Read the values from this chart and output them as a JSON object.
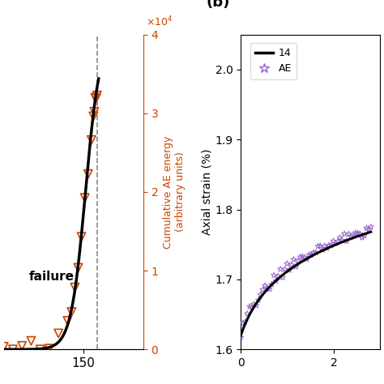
{
  "panel_a": {
    "ylabel_right": "Cumulative AE energy\n(arbitrary units)",
    "ylabel_right_color": "#cc4400",
    "failure_label": "failure",
    "failure_x": 153.5,
    "xlim": [
      130,
      165
    ],
    "ylim_right": [
      0,
      4
    ],
    "yticks_right": [
      0,
      1,
      2,
      3,
      4
    ],
    "xticks": [
      150
    ],
    "line_color": "#000000",
    "scatter_color": "#cc4400",
    "dashed_color": "#888888"
  },
  "panel_b": {
    "title": "(b)",
    "ylabel": "Axial strain (%)",
    "xlim": [
      0,
      3
    ],
    "ylim": [
      1.6,
      2.05
    ],
    "yticks": [
      1.6,
      1.7,
      1.8,
      1.9,
      2.0
    ],
    "xticks": [
      0,
      2
    ],
    "line_color": "#000000",
    "scatter_color": "#9966cc",
    "legend_line": "14",
    "legend_scatter": "AE"
  }
}
